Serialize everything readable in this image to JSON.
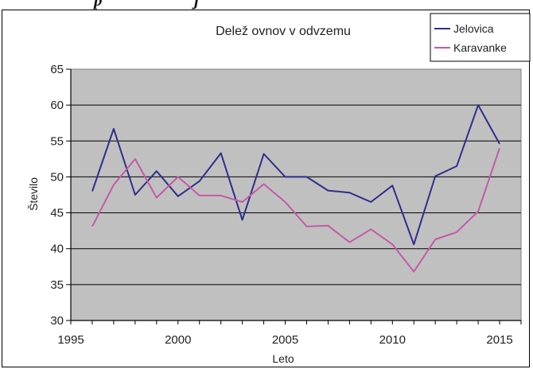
{
  "caption_fragment": "p... ... ... ...j...",
  "chart_data": {
    "type": "line",
    "title": "Delež ovnov v odvzemu",
    "xlabel": "Leto",
    "ylabel": "Število",
    "xlim": [
      1995,
      2016
    ],
    "ylim": [
      30,
      65
    ],
    "x_ticks": [
      1995,
      2000,
      2005,
      2010,
      2015
    ],
    "y_ticks": [
      30,
      35,
      40,
      45,
      50,
      55,
      60,
      65
    ],
    "grid": true,
    "legend_position": "top-right",
    "x": [
      1996,
      1997,
      1998,
      1999,
      2000,
      2001,
      2002,
      2003,
      2004,
      2005,
      2006,
      2007,
      2008,
      2009,
      2010,
      2011,
      2012,
      2013,
      2014,
      2015
    ],
    "series": [
      {
        "name": "Jelovica",
        "color": "#2e2e8c",
        "values": [
          48.0,
          56.7,
          47.5,
          50.8,
          47.3,
          49.4,
          53.3,
          44.0,
          53.2,
          50.0,
          50.0,
          48.1,
          47.8,
          46.5,
          48.8,
          40.6,
          50.1,
          51.5,
          60.0,
          54.6
        ]
      },
      {
        "name": "Karavanke",
        "color": "#c45aa8",
        "values": [
          43.1,
          48.9,
          52.5,
          47.1,
          50.0,
          47.4,
          47.4,
          46.5,
          49.0,
          46.5,
          43.1,
          43.2,
          40.9,
          42.7,
          40.6,
          36.8,
          41.3,
          42.3,
          45.2,
          54.0
        ]
      }
    ]
  }
}
